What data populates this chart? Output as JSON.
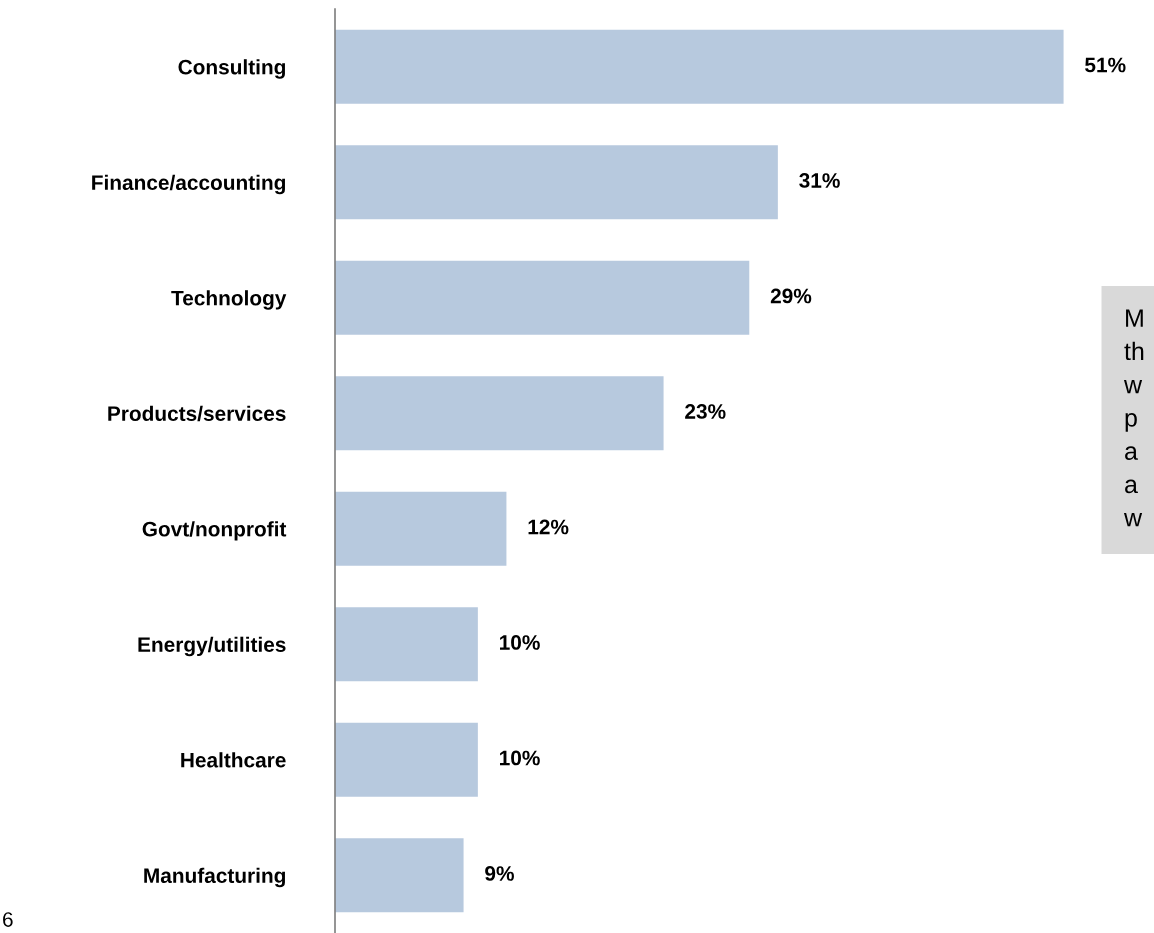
{
  "chart_data": {
    "type": "bar",
    "orientation": "horizontal",
    "categories": [
      "Consulting",
      "Finance/accounting",
      "Technology",
      "Products/services",
      "Govt/nonprofit",
      "Energy/utilities",
      "Healthcare",
      "Manufacturing"
    ],
    "values": [
      51,
      31,
      29,
      23,
      12,
      10,
      10,
      9
    ],
    "value_labels": [
      "51%",
      "31%",
      "29%",
      "23%",
      "12%",
      "10%",
      "10%",
      "9%"
    ],
    "color": "#b7c9de",
    "grid": false,
    "legend": false,
    "annotations": [
      "M\nth\nw\np\na\na\nw",
      "6"
    ]
  }
}
